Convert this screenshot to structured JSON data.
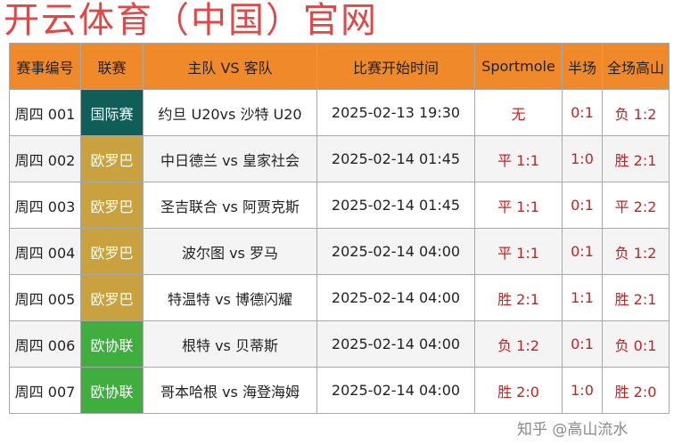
{
  "watermark": "开云体育（中国）官网",
  "credit": "知乎 @高山流水",
  "colors": {
    "header": "#f0892a",
    "result": "#cc1f1f",
    "国际赛": "#0f5e57",
    "欧罗巴": "#c9a23f",
    "欧协联": "#3fae3f"
  },
  "headers": [
    "赛事编号",
    "联赛",
    "主队 VS 客队",
    "比赛开始时间",
    "Sportmole",
    "半场",
    "全场高山"
  ],
  "rows": [
    {
      "id": "周四 001",
      "league": "国际赛",
      "match": "约旦 U20vs 沙特 U20",
      "time": "2025-02-13 19:30",
      "sportmole": "无",
      "half": "0:1",
      "full": "负 1:2"
    },
    {
      "id": "周四 002",
      "league": "欧罗巴",
      "match": "中日德兰 vs 皇家社会",
      "time": "2025-02-14 01:45",
      "sportmole": "平 1:1",
      "half": "1:0",
      "full": "胜 2:1"
    },
    {
      "id": "周四 003",
      "league": "欧罗巴",
      "match": "圣吉联合 vs 阿贾克斯",
      "time": "2025-02-14 01:45",
      "sportmole": "平 1:1",
      "half": "0:1",
      "full": "平 2:2"
    },
    {
      "id": "周四 004",
      "league": "欧罗巴",
      "match": "波尔图 vs 罗马",
      "time": "2025-02-14 04:00",
      "sportmole": "平 1:1",
      "half": "0:1",
      "full": "负 1:2"
    },
    {
      "id": "周四 005",
      "league": "欧罗巴",
      "match": "特温特 vs 博德闪耀",
      "time": "2025-02-14 04:00",
      "sportmole": "胜 2:1",
      "half": "1:1",
      "full": "胜 2:1"
    },
    {
      "id": "周四 006",
      "league": "欧协联",
      "match": "根特 vs 贝蒂斯",
      "time": "2025-02-14 04:00",
      "sportmole": "负 1:2",
      "half": "0:1",
      "full": "负 0:1"
    },
    {
      "id": "周四 007",
      "league": "欧协联",
      "match": "哥本哈根 vs 海登海姆",
      "time": "2025-02-14 04:00",
      "sportmole": "胜 2:0",
      "half": "1:0",
      "full": "胜 2:0"
    }
  ]
}
